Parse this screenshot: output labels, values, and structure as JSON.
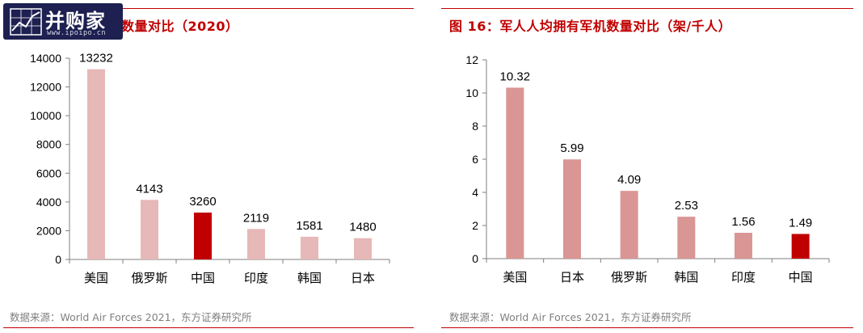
{
  "watermark": {
    "name": "并购家",
    "url": "www.ipoipo.cn"
  },
  "colors": {
    "accent": "#c00000",
    "bar_light_left": "#e6b8b7",
    "bar_light_right": "#d99694",
    "bar_highlight": "#c00000"
  },
  "left": {
    "title_visible": "数量对比（2020）",
    "source": "数据来源：World Air Forces 2021，东方证券研究所"
  },
  "right": {
    "title": "图 16：军人人均拥有军机数量对比（架/千人）",
    "source": "数据来源：World Air Forces 2021，东方证券研究所"
  },
  "chart_data": [
    {
      "type": "bar",
      "categories": [
        "美国",
        "俄罗斯",
        "中国",
        "印度",
        "韩国",
        "日本"
      ],
      "values": [
        13232,
        4143,
        3260,
        2119,
        1581,
        1480
      ],
      "value_labels": [
        "13232",
        "4143",
        "3260",
        "2119",
        "1581",
        "1480"
      ],
      "ylim": [
        0,
        14000
      ],
      "yticks": [
        "0",
        "2000",
        "4000",
        "6000",
        "8000",
        "10000",
        "12000",
        "14000"
      ],
      "highlight": "中国",
      "grid": false,
      "legend": "none"
    },
    {
      "type": "bar",
      "categories": [
        "美国",
        "日本",
        "俄罗斯",
        "韩国",
        "印度",
        "中国"
      ],
      "values": [
        10.32,
        5.99,
        4.09,
        2.53,
        1.56,
        1.49
      ],
      "value_labels": [
        "10.32",
        "5.99",
        "4.09",
        "2.53",
        "1.56",
        "1.49"
      ],
      "ylim": [
        0,
        12
      ],
      "yticks": [
        "0",
        "2",
        "4",
        "6",
        "8",
        "10",
        "12"
      ],
      "highlight": "中国",
      "grid": false,
      "legend": "none"
    }
  ]
}
